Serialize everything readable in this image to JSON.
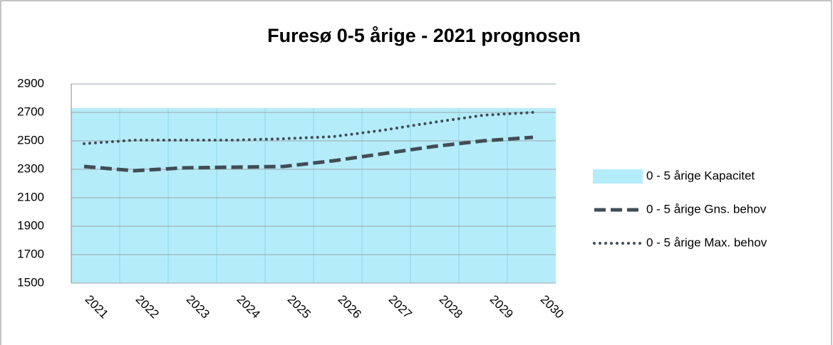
{
  "chart_data": {
    "type": "line",
    "title": "Furesø 0-5 årige - 2021 prognosen",
    "categories": [
      "2021",
      "2022",
      "2023",
      "2024",
      "2025",
      "2026",
      "2027",
      "2028",
      "2029",
      "2030"
    ],
    "series": [
      {
        "name": "0 - 5 årige Kapacitet",
        "kind": "area",
        "color": "#b5ecfa",
        "values": [
          2730,
          2730,
          2730,
          2730,
          2730,
          2730,
          2730,
          2730,
          2730,
          2730
        ]
      },
      {
        "name": "0 - 5 årige Gns. behov",
        "kind": "dashed",
        "color": "#414d56",
        "values": [
          2320,
          2290,
          2310,
          2315,
          2320,
          2360,
          2410,
          2460,
          2500,
          2525
        ]
      },
      {
        "name": "0 - 5 årige Max. behov",
        "kind": "dotted",
        "color": "#414d56",
        "values": [
          2480,
          2505,
          2505,
          2505,
          2515,
          2530,
          2575,
          2630,
          2680,
          2700
        ]
      }
    ],
    "ylim": [
      1500,
      2900
    ],
    "yticks": [
      1500,
      1700,
      1900,
      2100,
      2300,
      2500,
      2700,
      2900
    ],
    "grid": true,
    "legend": "right"
  }
}
